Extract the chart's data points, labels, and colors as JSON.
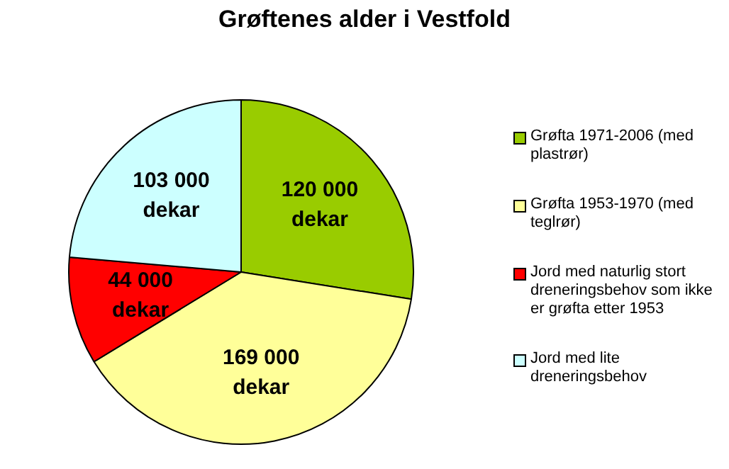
{
  "chart_data": {
    "type": "pie",
    "title": "Grøftenes alder i Vestfold",
    "categories": [
      "Grøfta 1971-2006 (med plastrør)",
      "Grøfta 1953-1970 (med teglrør)",
      "Jord med naturlig stort dreneringsbehov som ikke er grøfta etter 1953",
      "Jord med lite dreneringsbehov"
    ],
    "values": [
      120000,
      169000,
      44000,
      103000
    ],
    "colors": [
      "#99cc00",
      "#ffff99",
      "#ff0000",
      "#ccffff"
    ],
    "value_labels": [
      "120 000 dekar",
      "169 000 dekar",
      "44 000 dekar",
      "103 000 dekar"
    ],
    "legend": "right"
  }
}
